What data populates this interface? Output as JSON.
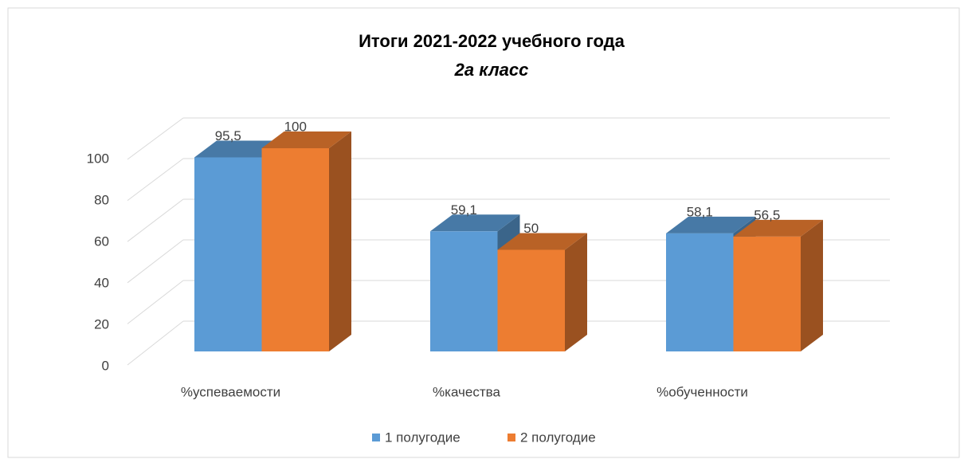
{
  "chart_data": {
    "type": "bar3d",
    "title": "Итоги 2021-2022 учебного года",
    "subtitle": "2а класс",
    "categories": [
      "%успеваемости",
      "%качества",
      "%обученности"
    ],
    "series": [
      {
        "name": "1 полугодие",
        "color": "#5b9bd5",
        "values": [
          95.5,
          59.1,
          58.1
        ],
        "value_labels": [
          "95,5",
          "59,1",
          "58,1"
        ]
      },
      {
        "name": "2 полугодие",
        "color": "#ed7d31",
        "values": [
          100,
          50,
          56.5
        ],
        "value_labels": [
          "100",
          "50",
          "56,5"
        ]
      }
    ],
    "ylim": [
      0,
      100
    ],
    "yticks": [
      0,
      20,
      40,
      60,
      80,
      100
    ],
    "grid": true,
    "legend": "bottom"
  }
}
